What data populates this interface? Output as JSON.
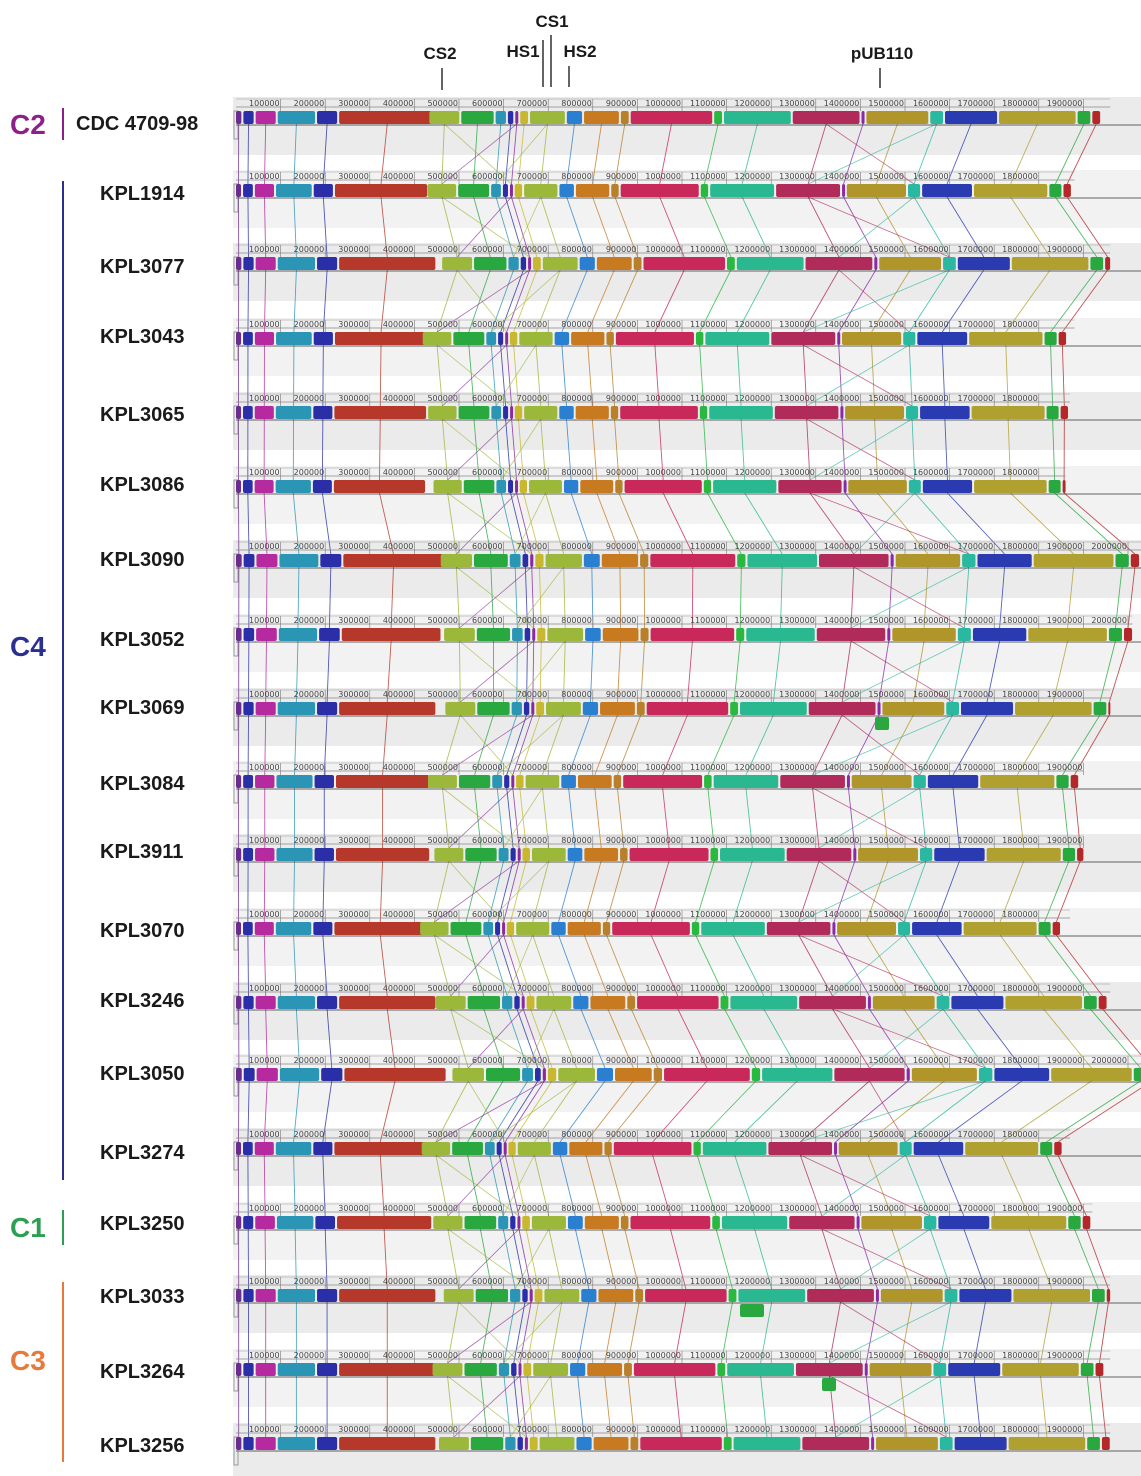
{
  "markers": [
    {
      "label": "CS1"
    },
    {
      "label": "CS2"
    },
    {
      "label": "HS1"
    },
    {
      "label": "HS2"
    },
    {
      "label": "pUB110"
    }
  ],
  "clusters": [
    {
      "label": "C2",
      "color": "#8e1f8a"
    },
    {
      "label": "C4",
      "color": "#2b2f8f"
    },
    {
      "label": "C1",
      "color": "#2e9e52"
    },
    {
      "label": "C3",
      "color": "#e8793a"
    }
  ],
  "tick_labels": [
    "100000",
    "200000",
    "300000",
    "400000",
    "500000",
    "600000",
    "700000",
    "800000",
    "900000",
    "1000000",
    "1100000",
    "1200000",
    "1300000",
    "1400000",
    "1500000",
    "1600000",
    "1700000",
    "1800000",
    "1900000",
    "2000000"
  ],
  "genomes": [
    {
      "name": "CDC 4709-98",
      "cluster": "C2",
      "length": 1960000
    },
    {
      "name": "KPL1914",
      "cluster": "C4",
      "length": 1880000
    },
    {
      "name": "KPL3077",
      "cluster": "C4",
      "length": 1960000
    },
    {
      "name": "KPL3043",
      "cluster": "C4",
      "length": 1880000
    },
    {
      "name": "KPL3065",
      "cluster": "C4",
      "length": 1870000
    },
    {
      "name": "KPL3086",
      "cluster": "C4",
      "length": 1860000
    },
    {
      "name": "KPL3090",
      "cluster": "C4",
      "length": 2040000
    },
    {
      "name": "KPL3052",
      "cluster": "C4",
      "length": 2010000
    },
    {
      "name": "KPL3069",
      "cluster": "C4",
      "length": 1960000
    },
    {
      "name": "KPL3084",
      "cluster": "C4",
      "length": 1900000
    },
    {
      "name": "KPL3911",
      "cluster": "C4",
      "length": 1900000
    },
    {
      "name": "KPL3070",
      "cluster": "C4",
      "length": 1870000
    },
    {
      "name": "KPL3246",
      "cluster": "C4",
      "length": 1960000
    },
    {
      "name": "KPL3050",
      "cluster": "C4",
      "length": 2060000
    },
    {
      "name": "KPL3274",
      "cluster": "C4",
      "length": 1870000
    },
    {
      "name": "KPL3250",
      "cluster": "C1",
      "length": 1920000
    },
    {
      "name": "KPL3033",
      "cluster": "C3",
      "length": 1960000
    },
    {
      "name": "KPL3264",
      "cluster": "C3",
      "length": 1960000
    },
    {
      "name": "KPL3256",
      "cluster": "C3",
      "length": 1960000
    }
  ],
  "block_palette": [
    "#6a2c8f",
    "#2a2fa8",
    "#b52a9e",
    "#2a95b5",
    "#2a2fa8",
    "#b5382a",
    "#9cb83a",
    "#2aa840",
    "#2a95b5",
    "#2a2fa8",
    "#8a2a9e",
    "#c8b830",
    "#9cb83a",
    "#2a7fd0",
    "#c87a20",
    "#b8802a",
    "#c8285a",
    "#2ab840",
    "#2ab890",
    "#b02a5a",
    "#8a2aa8",
    "#b0962a",
    "#2ab8a0",
    "#2a3ab0",
    "#b0a030",
    "#2aa840",
    "#b5282a"
  ]
}
